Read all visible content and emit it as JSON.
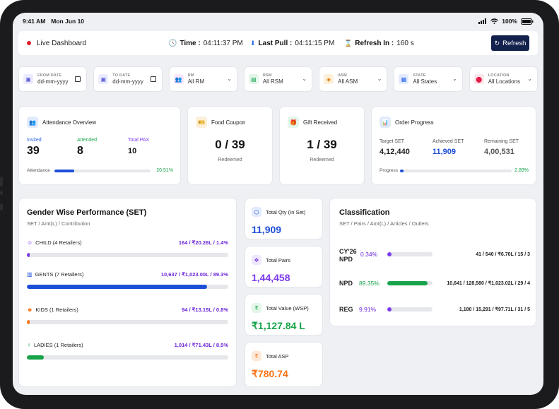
{
  "status_bar": {
    "time": "9:41 AM",
    "date": "Mon Jun 10",
    "battery": "100%"
  },
  "header": {
    "live_label": "Live Dashboard",
    "time_label": "Time :",
    "time_value": "04:11:37 PM",
    "last_pull_label": "Last Pull :",
    "last_pull_value": "04:11:15 PM",
    "refresh_in_label": "Refresh In :",
    "refresh_in_value": "160 s",
    "refresh_button": "Refresh"
  },
  "filters": [
    {
      "label": "FROM DATE",
      "value": "dd-mm-yyyy",
      "icon": "calendar-icon",
      "color": "#5b5bd6",
      "bg": "#ecebff"
    },
    {
      "label": "TO DATE",
      "value": "dd-mm-yyyy",
      "icon": "calendar-icon",
      "color": "#5b5bd6",
      "bg": "#ecebff"
    },
    {
      "label": "RM",
      "value": "All RM",
      "icon": "users-icon",
      "color": "#c026d3",
      "bg": "#fbe7fb"
    },
    {
      "label": "RSM",
      "value": "All RSM",
      "icon": "id-card-icon",
      "color": "#16a34a",
      "bg": "#e3f6e9"
    },
    {
      "label": "ASM",
      "value": "All ASM",
      "icon": "badge-icon",
      "color": "#d97706",
      "bg": "#fdf0d9"
    },
    {
      "label": "STATE",
      "value": "All States",
      "icon": "building-icon",
      "color": "#2563eb",
      "bg": "#e2ebfd"
    },
    {
      "label": "LOCATION",
      "value": "All Locations",
      "icon": "location-pin-icon",
      "color": "#e11d48",
      "bg": "#fde4ea"
    }
  ],
  "attendance": {
    "title": "Attendance Overview",
    "invited_label": "Invited",
    "invited_value": "39",
    "attended_label": "Attended",
    "attended_value": "8",
    "pax_label": "Total PAX",
    "pax_value": "10",
    "bar_label": "Attendance",
    "percent": "20.51%",
    "fraction": 0.2051
  },
  "food_coupon": {
    "title": "Food Coupon",
    "value": "0 / 39",
    "sub": "Redeemed"
  },
  "gift": {
    "title": "Gift Received",
    "value": "1 / 39",
    "sub": "Redeemed"
  },
  "order_progress": {
    "title": "Order Progress",
    "target_label": "Target SET",
    "target_value": "4,12,440",
    "achieved_label": "Achieved SET",
    "achieved_value": "11,909",
    "remaining_label": "Remaining SET",
    "remaining_value": "4,00,531",
    "bar_label": "Progress",
    "percent": "2.89%",
    "fraction": 0.0289
  },
  "gender": {
    "title": "Gender Wise Performance (SET)",
    "subtitle": "SET / Amt(L) / Contribution",
    "rows": [
      {
        "label": "CHILD (4 Retailers)",
        "value": "164 / ₹20.26L / 1.4%",
        "fraction": 0.014,
        "color": "#7c3aed",
        "icon": "child-icon"
      },
      {
        "label": "GENTS (7 Retailers)",
        "value": "10,637 / ₹1,023.00L / 89.3%",
        "fraction": 0.893,
        "color": "#1d4ed8",
        "icon": "gents-icon"
      },
      {
        "label": "KIDS (1 Retailers)",
        "value": "94 / ₹13.15L / 0.8%",
        "fraction": 0.008,
        "color": "#f97316",
        "icon": "kids-icon"
      },
      {
        "label": "LADIES (1 Retailers)",
        "value": "1,014 / ₹71.43L / 8.5%",
        "fraction": 0.085,
        "color": "#16a34a",
        "icon": "ladies-icon"
      }
    ]
  },
  "kpis": [
    {
      "title": "Total Qty (In Set)",
      "value": "11,909",
      "color": "#1d4ed8",
      "icon": "cube-icon",
      "bg": "#e2ebfd"
    },
    {
      "title": "Total Pairs",
      "value": "1,44,458",
      "color": "#7c3aed",
      "icon": "pairs-icon",
      "bg": "#efe7fd"
    },
    {
      "title": "Total Value (WSP)",
      "value": "₹1,127.84 L",
      "color": "#16a34a",
      "icon": "rupee-icon",
      "bg": "#e3f6e9"
    },
    {
      "title": "Total ASP",
      "value": "₹780.74",
      "color": "#f97316",
      "icon": "rupee-icon",
      "bg": "#fde9d9"
    }
  ],
  "classification": {
    "title": "Classification",
    "subtitle": "SET / Pairs / Amt(L) / Articles / Outlets",
    "rows": [
      {
        "label1": "CY'26",
        "label2": "NPD",
        "percent": "0.34%",
        "pct_color": "#6d28d9",
        "fraction": 0.0034,
        "bar_color": "#7c3aed",
        "detail": "41 / 540 / ₹6.70L / 15 / 3"
      },
      {
        "label1": "NPD",
        "label2": "",
        "percent": "89.35%",
        "pct_color": "#16a34a",
        "fraction": 0.8935,
        "bar_color": "#16a34a",
        "detail": "10,641 / 128,580 / ₹1,023.02L / 29 / 4"
      },
      {
        "label1": "REG",
        "label2": "",
        "percent": "9.91%",
        "pct_color": "#6d28d9",
        "fraction": 0.0991,
        "bar_color": "#7c3aed",
        "detail": "1,180 / 15,291 / ₹97.71L / 31 / 5"
      }
    ]
  }
}
